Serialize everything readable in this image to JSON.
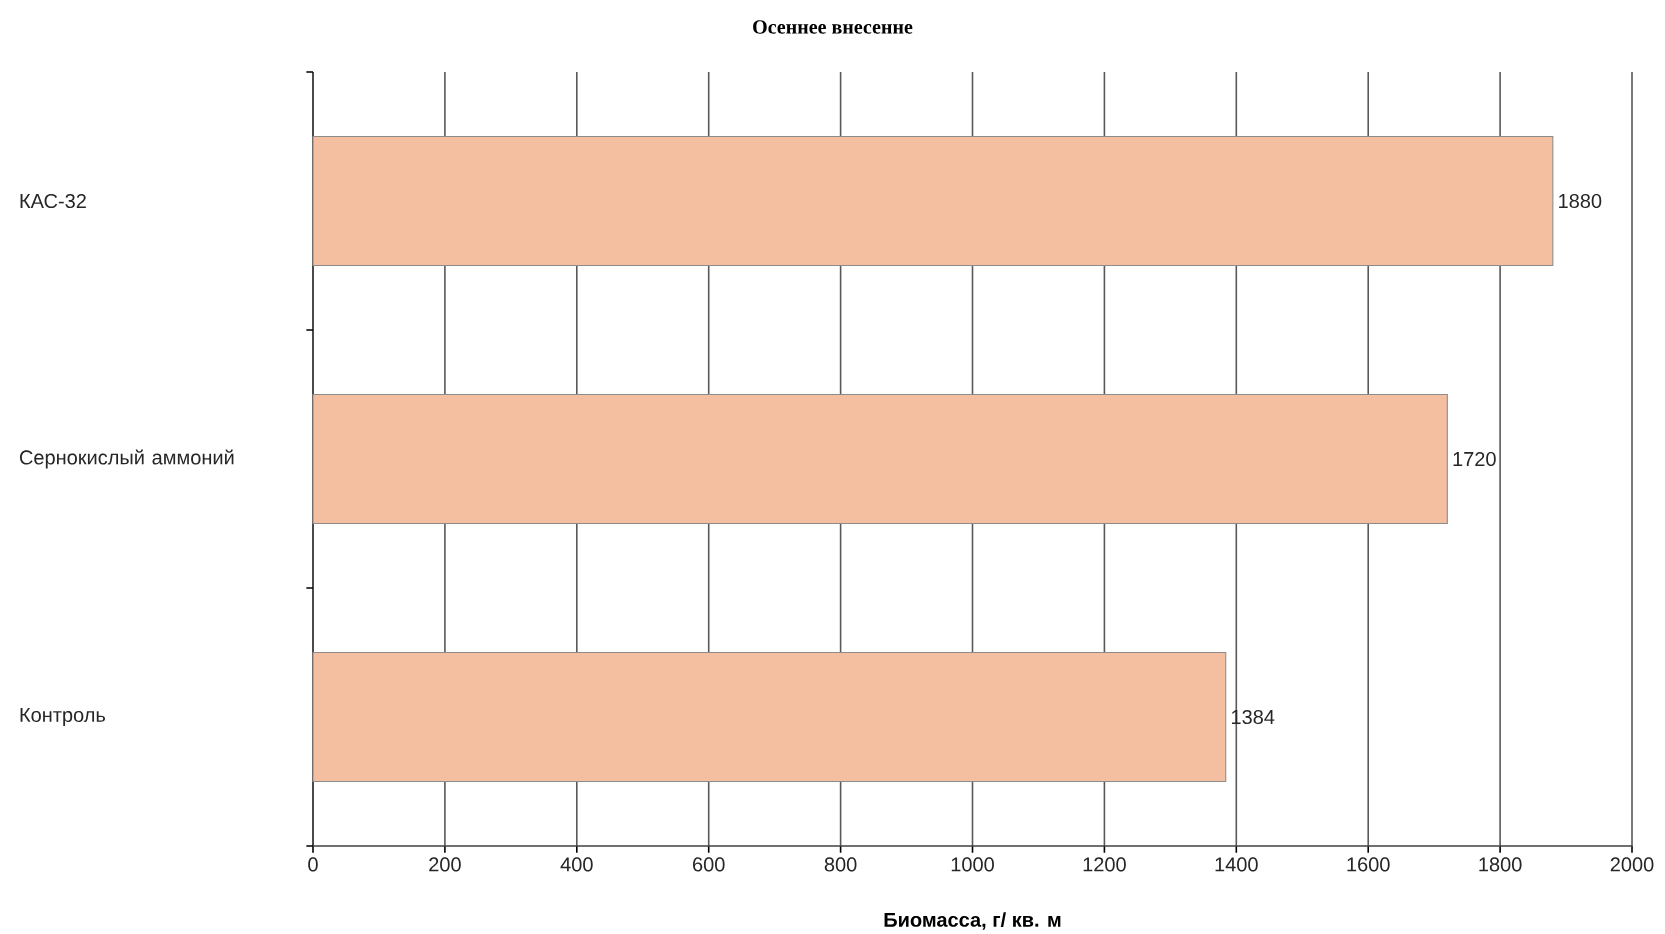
{
  "chart_data": {
    "type": "bar",
    "orientation": "horizontal",
    "title": "Осеннее внесенне",
    "xlabel": "Биомасса, г/ кв. м",
    "categories": [
      "КАС-32",
      "Сернокислый аммоний",
      "Контроль"
    ],
    "values": [
      1880,
      1720,
      1384
    ],
    "color": "#f4bea0",
    "xlim": [
      0,
      2000
    ],
    "xticks": [
      0,
      200,
      400,
      600,
      800,
      1000,
      1200,
      1400,
      1600,
      1800,
      2000
    ],
    "grid": "x",
    "data_labels": true
  }
}
